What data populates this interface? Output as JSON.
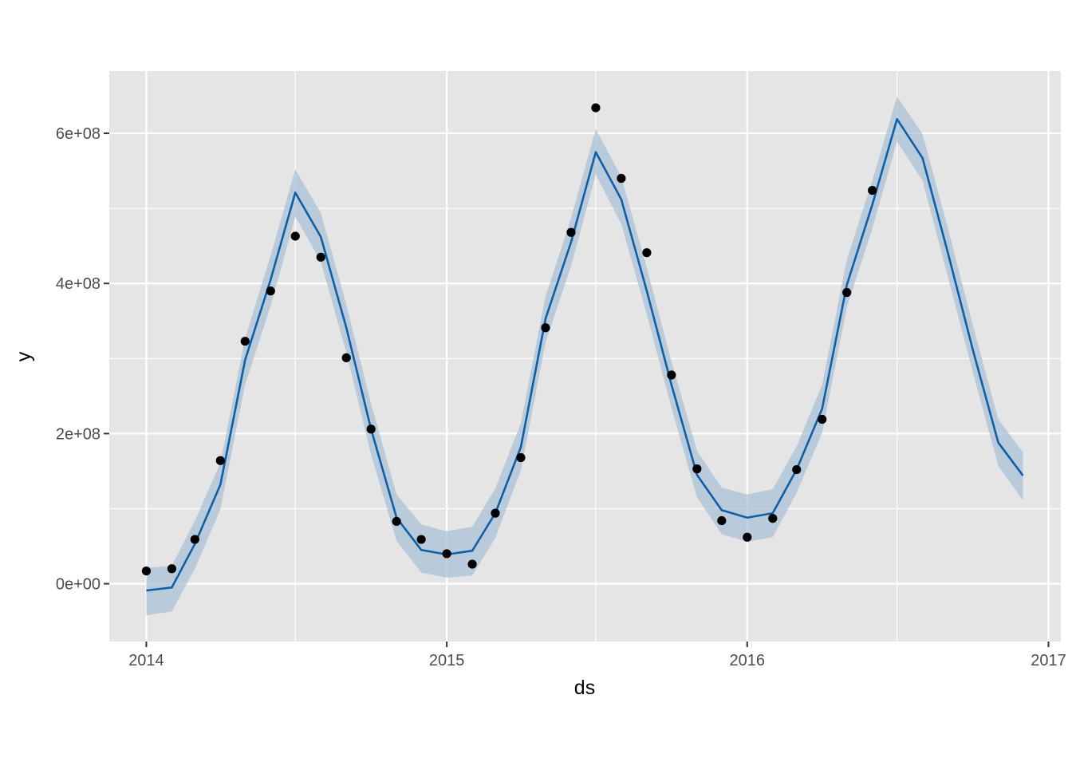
{
  "chart_data": {
    "type": "line",
    "title": "",
    "xlabel": "ds",
    "ylabel": "y",
    "x_ticks": [
      "2014",
      "2015",
      "2016",
      "2017"
    ],
    "y_ticks": [
      "0e+00",
      "2e+08",
      "4e+08",
      "6e+08"
    ],
    "xlim": [
      "2013-11-17",
      "2017-01-16"
    ],
    "ylim": [
      -77000000,
      683000000
    ],
    "grid": true,
    "legend": "none",
    "colors": {
      "panel": "#e5e5e5",
      "grid": "#ffffff",
      "line": "#0f5fa6",
      "band": "#a7c0d6",
      "points": "#000000"
    },
    "series": [
      {
        "type": "scatter",
        "x": [
          "2014-01-01",
          "2014-02-01",
          "2014-03-01",
          "2014-04-01",
          "2014-05-01",
          "2014-06-01",
          "2014-07-01",
          "2014-08-01",
          "2014-09-01",
          "2014-10-01",
          "2014-11-01",
          "2014-12-01",
          "2015-01-01",
          "2015-02-01",
          "2015-03-01",
          "2015-04-01",
          "2015-05-01",
          "2015-06-01",
          "2015-07-01",
          "2015-08-01",
          "2015-09-01",
          "2015-10-01",
          "2015-11-01",
          "2015-12-01",
          "2016-01-01",
          "2016-02-01",
          "2016-03-01",
          "2016-04-01",
          "2016-05-01",
          "2016-06-01"
        ],
        "y": [
          17000000,
          20000000,
          59000000,
          164000000,
          323000000,
          390000000,
          463000000,
          435000000,
          301000000,
          206000000,
          83000000,
          59000000,
          40000000,
          26000000,
          94000000,
          168000000,
          341000000,
          468000000,
          634000000,
          540000000,
          441000000,
          278000000,
          153000000,
          84000000,
          62000000,
          87000000,
          152000000,
          219000000,
          388000000,
          524000000
        ]
      },
      {
        "type": "line",
        "x": [
          "2014-01-01",
          "2014-02-01",
          "2014-03-01",
          "2014-04-01",
          "2014-05-01",
          "2014-06-01",
          "2014-07-01",
          "2014-08-01",
          "2014-09-01",
          "2014-10-01",
          "2014-11-01",
          "2014-12-01",
          "2015-01-01",
          "2015-02-01",
          "2015-03-01",
          "2015-04-01",
          "2015-05-01",
          "2015-06-01",
          "2015-07-01",
          "2015-08-01",
          "2015-09-01",
          "2015-10-01",
          "2015-11-01",
          "2015-12-01",
          "2016-01-01",
          "2016-02-01",
          "2016-03-01",
          "2016-04-01",
          "2016-05-01",
          "2016-06-01",
          "2016-07-01",
          "2016-08-01",
          "2016-09-01",
          "2016-10-01",
          "2016-11-01",
          "2016-12-01"
        ],
        "y": [
          -9000000,
          -5000000,
          53000000,
          132000000,
          298000000,
          405000000,
          521000000,
          462000000,
          341000000,
          206000000,
          88000000,
          45000000,
          39000000,
          44000000,
          94000000,
          182000000,
          353000000,
          455000000,
          575000000,
          512000000,
          390000000,
          265000000,
          145000000,
          98000000,
          88000000,
          94000000,
          152000000,
          233000000,
          398000000,
          505000000,
          619000000,
          567000000,
          440000000,
          312000000,
          188000000,
          144000000
        ],
        "lower": [
          -42000000,
          -37000000,
          20000000,
          99000000,
          265000000,
          370000000,
          489000000,
          429000000,
          308000000,
          172000000,
          57000000,
          15000000,
          8000000,
          11000000,
          61000000,
          151000000,
          321000000,
          423000000,
          545000000,
          479000000,
          359000000,
          234000000,
          115000000,
          66000000,
          56000000,
          62000000,
          121000000,
          201000000,
          368000000,
          473000000,
          589000000,
          537000000,
          408000000,
          282000000,
          157000000,
          111000000
        ],
        "upper": [
          21000000,
          24000000,
          84000000,
          161000000,
          327000000,
          437000000,
          552000000,
          494000000,
          372000000,
          240000000,
          119000000,
          79000000,
          70000000,
          76000000,
          127000000,
          214000000,
          383000000,
          487000000,
          606000000,
          542000000,
          421000000,
          296000000,
          177000000,
          128000000,
          119000000,
          126000000,
          183000000,
          265000000,
          432000000,
          537000000,
          649000000,
          599000000,
          473000000,
          345000000,
          219000000,
          175000000
        ]
      }
    ]
  }
}
